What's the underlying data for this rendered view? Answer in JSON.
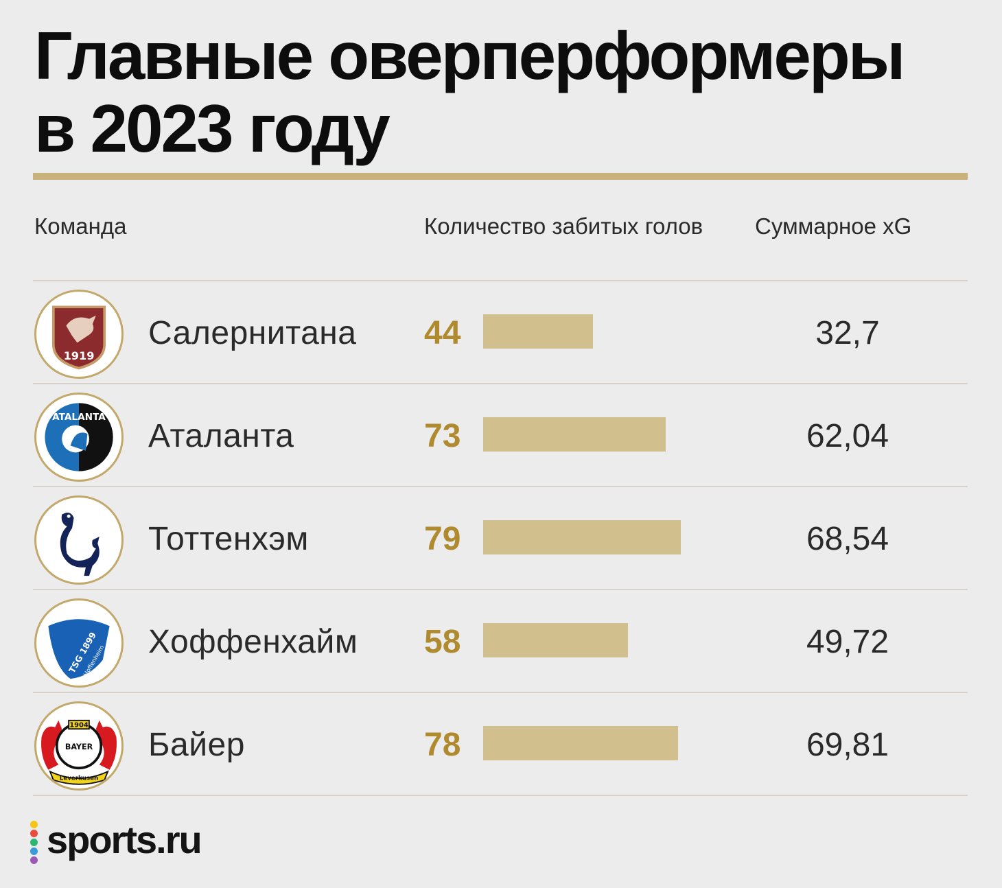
{
  "title_lines": [
    "Главные оверперформеры",
    "в 2023 году"
  ],
  "columns": {
    "team": "Команда",
    "goals": "Количество забитых голов",
    "xg": "Суммарное xG"
  },
  "colors": {
    "accent_gold": "#c9b27a",
    "goals_text": "#b08a2e",
    "bar_fill": "#d2bf8e",
    "background": "#ececec"
  },
  "chart_data": {
    "type": "bar",
    "orientation": "horizontal",
    "categories": [
      "Салернитана",
      "Аталанта",
      "Тоттенхэм",
      "Хоффенхайм",
      "Байер"
    ],
    "series": [
      {
        "values": [
          44,
          73,
          79,
          58,
          78
        ]
      }
    ],
    "xg_values": [
      "32,7",
      "62,04",
      "68,54",
      "49,72",
      "69,81"
    ],
    "goal_labels": [
      "44",
      "73",
      "79",
      "58",
      "78"
    ],
    "xlim": [
      0,
      79
    ],
    "title": "Главные оверперформеры в 2023 году",
    "legend": "none",
    "grid": false
  },
  "rows": [
    {
      "team": "Салернитана",
      "goals": "44",
      "xg": "32,7",
      "logo_icon": "salernitana-crest-icon"
    },
    {
      "team": "Аталанта",
      "goals": "73",
      "xg": "62,04",
      "logo_icon": "atalanta-crest-icon"
    },
    {
      "team": "Тоттенхэм",
      "goals": "79",
      "xg": "68,54",
      "logo_icon": "tottenham-crest-icon"
    },
    {
      "team": "Хоффенхайм",
      "goals": "58",
      "xg": "49,72",
      "logo_icon": "hoffenheim-crest-icon"
    },
    {
      "team": "Байер",
      "goals": "78",
      "xg": "69,81",
      "logo_icon": "bayer-crest-icon"
    }
  ],
  "logo_text": {
    "salernitana_year": "1919",
    "atalanta": "ATALANTA",
    "hoffenheim": "TSG 1899",
    "hoffenheim_sub": "Hoffenheim",
    "bayer": "BAYER",
    "bayer_year": "1904",
    "bayer_city": "Leverkusen"
  },
  "brand": {
    "name": "sports.ru",
    "dot_colors": [
      "#f5c518",
      "#e94b3c",
      "#2bb673",
      "#3a9ad9",
      "#9b59b6"
    ]
  }
}
